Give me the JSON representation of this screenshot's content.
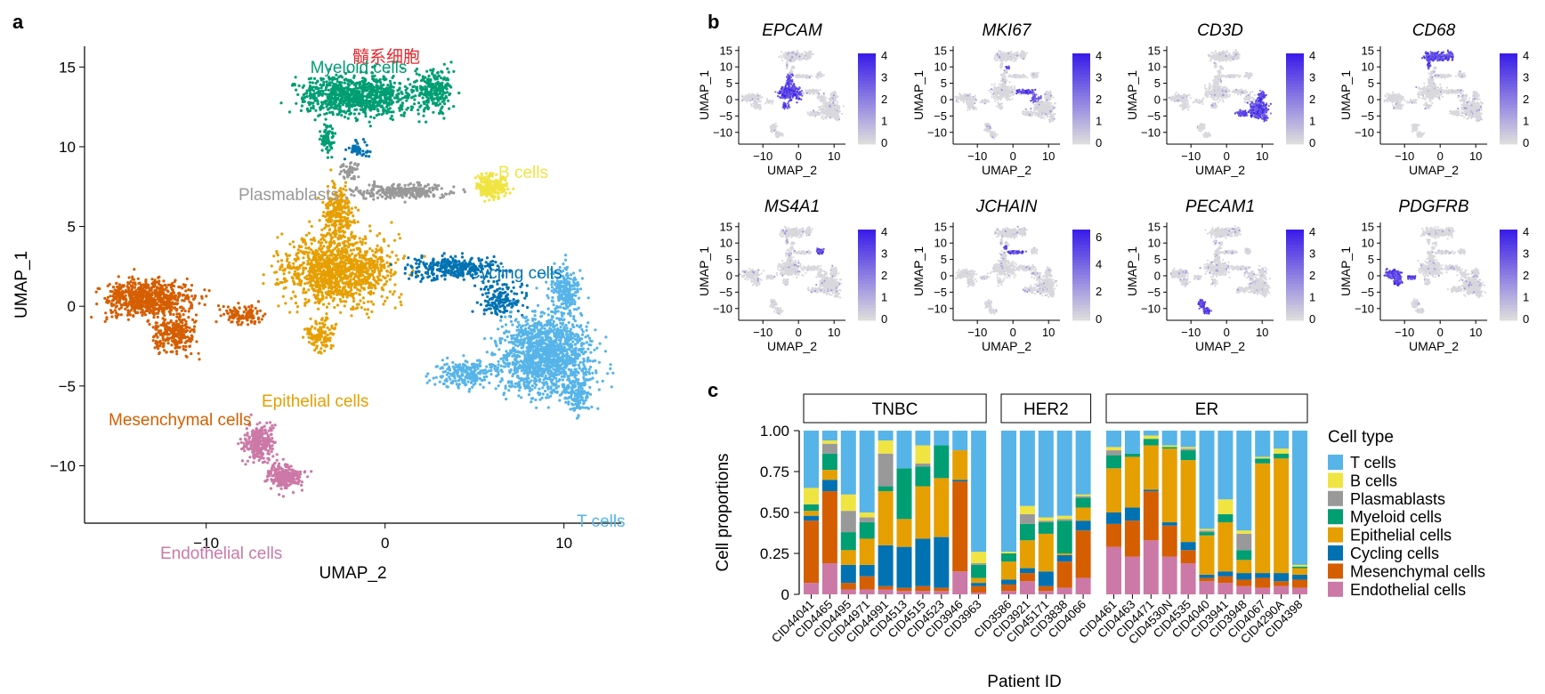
{
  "colors": {
    "T cells": "#56b4e9",
    "B cells": "#f0e442",
    "Plasmablasts": "#999999",
    "Myeloid cells": "#009e73",
    "Epithelial cells": "#e69f00",
    "Cycling cells": "#0072b2",
    "Mesenchymal cells": "#d55e00",
    "Endothelial cells": "#cc79a7",
    "feature_low": "#dcdcdc",
    "feature_high": "#3a1ee8",
    "chinese_label": "#e8262b"
  },
  "panels": {
    "a": "a",
    "b": "b",
    "c": "c"
  },
  "umap": {
    "xlabel": "UMAP_2",
    "ylabel": "UMAP_1",
    "xticks": [
      "−10",
      "0",
      "10"
    ],
    "yticks": [
      "15",
      "10",
      "5",
      "0",
      "−5",
      "−10"
    ],
    "chinese_annotation": "髓系细胞",
    "clusters": [
      {
        "name": "Myeloid cells",
        "label": "Myeloid cells",
        "cx": -1.5,
        "cy": 13.0
      },
      {
        "name": "B cells",
        "label": "B cells",
        "cx": 6.0,
        "cy": 7.5
      },
      {
        "name": "Plasmablasts",
        "label": "Plasmablasts",
        "cx": 0.8,
        "cy": 7.1
      },
      {
        "name": "Cycling cells",
        "label": "Cycling cells",
        "cx": 4.0,
        "cy": 2.0
      },
      {
        "name": "Epithelial cells",
        "label": "Epithelial cells",
        "cx": -2.5,
        "cy": 1.5
      },
      {
        "name": "Mesenchymal cells",
        "label": "Mesenchymal cells",
        "cx": -13.0,
        "cy": 0.5
      },
      {
        "name": "T cells",
        "label": "T cells",
        "cx": 9.0,
        "cy": -3.5
      },
      {
        "name": "Endothelial cells",
        "label": "Endothelial cells",
        "cx": -6.5,
        "cy": -9.5
      }
    ]
  },
  "features": {
    "xlabel": "UMAP_2",
    "ylabel": "UMAP_1",
    "xticks": [
      "−10",
      "0",
      "10"
    ],
    "yticks": [
      "15",
      "10",
      "5",
      "0",
      "−5",
      "−10"
    ],
    "genes": [
      {
        "name": "EPCAM",
        "scale": [
          "4",
          "3",
          "2",
          "1",
          "0"
        ],
        "target": "Epithelial cells"
      },
      {
        "name": "MKI67",
        "scale": [
          "4",
          "3",
          "2",
          "1",
          "0"
        ],
        "target": "Cycling cells"
      },
      {
        "name": "CD3D",
        "scale": [
          "4",
          "3",
          "2",
          "1",
          "0"
        ],
        "target": "T cells"
      },
      {
        "name": "CD68",
        "scale": [
          "4",
          "3",
          "2",
          "1",
          "0"
        ],
        "target": "Myeloid cells"
      },
      {
        "name": "MS4A1",
        "scale": [
          "4",
          "3",
          "2",
          "1",
          "0"
        ],
        "target": "B cells"
      },
      {
        "name": "JCHAIN",
        "scale": [
          "6",
          "4",
          "2",
          "0"
        ],
        "target": "Plasmablasts"
      },
      {
        "name": "PECAM1",
        "scale": [
          "4",
          "3",
          "2",
          "1",
          "0"
        ],
        "target": "Endothelial cells"
      },
      {
        "name": "PDGFRB",
        "scale": [
          "4",
          "3",
          "2",
          "1",
          "0"
        ],
        "target": "Mesenchymal cells"
      }
    ]
  },
  "chart_data": {
    "type": "bar",
    "stacked": true,
    "xlabel": "Patient ID",
    "ylabel": "Cell proportions",
    "ylim": [
      0,
      1
    ],
    "yticks": [
      "1.00",
      "0.75",
      "0.50",
      "0.25",
      "0"
    ],
    "legend_title": "Cell type",
    "legend_position": "right",
    "stack_order": [
      "Endothelial cells",
      "Mesenchymal cells",
      "Cycling cells",
      "Epithelial cells",
      "Myeloid cells",
      "Plasmablasts",
      "B cells",
      "T cells"
    ],
    "legend_order": [
      "T cells",
      "B cells",
      "Plasmablasts",
      "Myeloid cells",
      "Epithelial cells",
      "Cycling cells",
      "Mesenchymal cells",
      "Endothelial cells"
    ],
    "groups": [
      {
        "name": "TNBC",
        "patients": [
          {
            "id": "CID44041",
            "values": [
              0.07,
              0.38,
              0.03,
              0.03,
              0.04,
              0.0,
              0.1,
              0.35
            ]
          },
          {
            "id": "CID4465",
            "values": [
              0.19,
              0.44,
              0.07,
              0.06,
              0.1,
              0.06,
              0.02,
              0.06
            ]
          },
          {
            "id": "CID4495",
            "values": [
              0.03,
              0.04,
              0.11,
              0.09,
              0.11,
              0.13,
              0.1,
              0.39
            ]
          },
          {
            "id": "CID44971",
            "values": [
              0.03,
              0.08,
              0.07,
              0.16,
              0.1,
              0.03,
              0.03,
              0.5
            ]
          },
          {
            "id": "CID44991",
            "values": [
              0.03,
              0.02,
              0.25,
              0.33,
              0.03,
              0.2,
              0.08,
              0.06
            ]
          },
          {
            "id": "CID4513",
            "values": [
              0.02,
              0.02,
              0.25,
              0.17,
              0.31,
              0.0,
              0.0,
              0.23
            ]
          },
          {
            "id": "CID4515",
            "values": [
              0.02,
              0.03,
              0.29,
              0.32,
              0.12,
              0.02,
              0.11,
              0.09
            ]
          },
          {
            "id": "CID4523",
            "values": [
              0.02,
              0.02,
              0.31,
              0.36,
              0.2,
              0.0,
              0.0,
              0.09
            ]
          },
          {
            "id": "CID3946",
            "values": [
              0.14,
              0.55,
              0.01,
              0.18,
              0.0,
              0.0,
              0.0,
              0.12
            ]
          },
          {
            "id": "CID3963",
            "values": [
              0.01,
              0.04,
              0.02,
              0.03,
              0.08,
              0.01,
              0.07,
              0.74
            ]
          }
        ]
      },
      {
        "name": "HER2",
        "patients": [
          {
            "id": "CID3586",
            "values": [
              0.02,
              0.04,
              0.03,
              0.11,
              0.05,
              0.0,
              0.01,
              0.74
            ]
          },
          {
            "id": "CID3921",
            "values": [
              0.08,
              0.05,
              0.03,
              0.17,
              0.1,
              0.06,
              0.05,
              0.46
            ]
          },
          {
            "id": "CID45171",
            "values": [
              0.02,
              0.03,
              0.09,
              0.23,
              0.07,
              0.01,
              0.02,
              0.53
            ]
          },
          {
            "id": "CID3838",
            "values": [
              0.04,
              0.16,
              0.04,
              0.01,
              0.2,
              0.01,
              0.02,
              0.52
            ]
          },
          {
            "id": "CID4066",
            "values": [
              0.1,
              0.29,
              0.06,
              0.08,
              0.06,
              0.01,
              0.01,
              0.39
            ]
          }
        ]
      },
      {
        "name": "ER",
        "patients": [
          {
            "id": "CID4461",
            "values": [
              0.29,
              0.14,
              0.07,
              0.27,
              0.08,
              0.03,
              0.02,
              0.1
            ]
          },
          {
            "id": "CID4463",
            "values": [
              0.23,
              0.22,
              0.08,
              0.31,
              0.02,
              0.0,
              0.0,
              0.14
            ]
          },
          {
            "id": "CID4471",
            "values": [
              0.33,
              0.3,
              0.01,
              0.27,
              0.04,
              0.0,
              0.02,
              0.03
            ]
          },
          {
            "id": "CID4530N",
            "values": [
              0.23,
              0.19,
              0.02,
              0.45,
              0.01,
              0.0,
              0.01,
              0.09
            ]
          },
          {
            "id": "CID4535",
            "values": [
              0.19,
              0.08,
              0.05,
              0.5,
              0.06,
              0.01,
              0.01,
              0.1
            ]
          },
          {
            "id": "CID4040",
            "values": [
              0.08,
              0.02,
              0.02,
              0.24,
              0.02,
              0.01,
              0.01,
              0.6
            ]
          },
          {
            "id": "CID3941",
            "values": [
              0.07,
              0.04,
              0.03,
              0.3,
              0.05,
              0.0,
              0.09,
              0.42
            ]
          },
          {
            "id": "CID3948",
            "values": [
              0.05,
              0.04,
              0.04,
              0.08,
              0.06,
              0.1,
              0.02,
              0.61
            ]
          },
          {
            "id": "CID4067",
            "values": [
              0.04,
              0.06,
              0.03,
              0.67,
              0.03,
              0.0,
              0.01,
              0.16
            ]
          },
          {
            "id": "CID4290A",
            "values": [
              0.05,
              0.03,
              0.05,
              0.7,
              0.03,
              0.0,
              0.03,
              0.11
            ]
          },
          {
            "id": "CID4398",
            "values": [
              0.04,
              0.05,
              0.03,
              0.04,
              0.01,
              0.0,
              0.01,
              0.82
            ]
          }
        ]
      }
    ]
  }
}
